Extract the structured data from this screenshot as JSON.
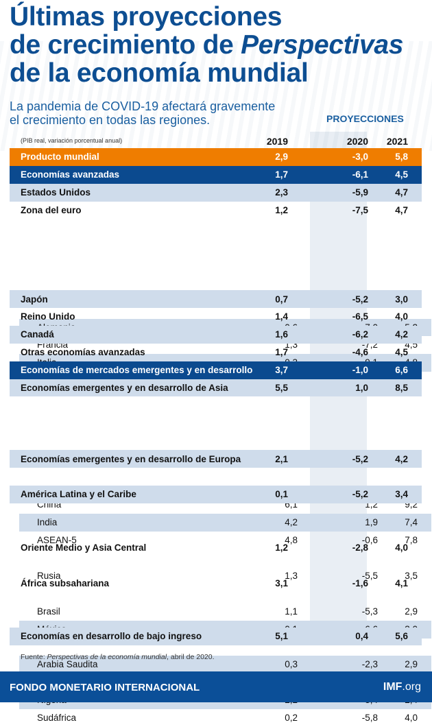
{
  "title": {
    "line1": "Últimas proyecciones",
    "line2a": "de crecimiento de ",
    "line2b": "Perspectivas",
    "line3": "de la economía mundial"
  },
  "subtitle": {
    "line1": "La pandemia de COVID-19 afectará gravemente",
    "line2": "el crecimiento en todas las regiones."
  },
  "projections_label": "PROYECCIONES",
  "unit_note": "(PIB real, variación porcentual anual)",
  "years": [
    "2019",
    "2020",
    "2021"
  ],
  "colors": {
    "title": "#0d4e92",
    "world_row": "#ef7d00",
    "group_row": "#0b4a8f",
    "alt_row": "#cfdceb",
    "footer": "#0b4f98"
  },
  "rows": [
    {
      "label": "Producto mundial",
      "values": [
        "2,9",
        "-3,0",
        "5,8"
      ],
      "style": "world"
    },
    {
      "label": "Economías avanzadas",
      "values": [
        "1,7",
        "-6,1",
        "4,5"
      ],
      "style": "group"
    },
    {
      "label": "Estados Unidos",
      "values": [
        "2,3",
        "-5,9",
        "4,7"
      ],
      "style": "bold"
    },
    {
      "label": "Zona del euro",
      "values": [
        "1,2",
        "-7,5",
        "4,7"
      ],
      "style": "bold"
    },
    {
      "label": "Alemania",
      "values": [
        "0,6",
        "-7,0",
        "5,2"
      ],
      "style": "sub"
    },
    {
      "label": "Francia",
      "values": [
        "1,3",
        "-7,2",
        "4,5"
      ],
      "style": "sub"
    },
    {
      "label": "Italia",
      "values": [
        "0,3",
        "-9,1",
        "4,8"
      ],
      "style": "sub"
    },
    {
      "label": "España",
      "values": [
        "2,0",
        "-8,0",
        "4,3"
      ],
      "style": "sub"
    },
    {
      "label": "Japón",
      "values": [
        "0,7",
        "-5,2",
        "3,0"
      ],
      "style": "bold"
    },
    {
      "label": "Reino Unido",
      "values": [
        "1,4",
        "-6,5",
        "4,0"
      ],
      "style": "bold"
    },
    {
      "label": "Canadá",
      "values": [
        "1,6",
        "-6,2",
        "4,2"
      ],
      "style": "bold"
    },
    {
      "label": "Otras economías avanzadas",
      "values": [
        "1,7",
        "-4,6",
        "4,5"
      ],
      "style": "bold"
    },
    {
      "label": "Economías de mercados emergentes y en desarrollo",
      "values": [
        "3,7",
        "-1,0",
        "6,6"
      ],
      "style": "group"
    },
    {
      "label": "Economías emergentes y en desarrollo de Asia",
      "values": [
        "5,5",
        "1,0",
        "8,5"
      ],
      "style": "bold"
    },
    {
      "label": "China",
      "values": [
        "6,1",
        "1,2",
        "9,2"
      ],
      "style": "sub"
    },
    {
      "label": "India",
      "values": [
        "4,2",
        "1,9",
        "7,4"
      ],
      "style": "sub"
    },
    {
      "label": "ASEAN-5",
      "values": [
        "4,8",
        "-0,6",
        "7,8"
      ],
      "style": "sub"
    },
    {
      "label": "Economías emergentes y en desarrollo de Europa",
      "values": [
        "2,1",
        "-5,2",
        "4,2"
      ],
      "style": "bold"
    },
    {
      "label": "Rusia",
      "values": [
        "1,3",
        "-5,5",
        "3,5"
      ],
      "style": "sub"
    },
    {
      "label": "América Latina y el Caribe",
      "values": [
        "0,1",
        "-5,2",
        "3,4"
      ],
      "style": "bold"
    },
    {
      "label": "Brasil",
      "values": [
        "1,1",
        "-5,3",
        "2,9"
      ],
      "style": "sub"
    },
    {
      "label": "México",
      "values": [
        "-0,1",
        "-6,6",
        "3,0"
      ],
      "style": "sub"
    },
    {
      "label": "Oriente Medio y Asia Central",
      "values": [
        "1,2",
        "-2,8",
        "4,0"
      ],
      "style": "bold"
    },
    {
      "label": "Arabia Saudita",
      "values": [
        "0,3",
        "-2,3",
        "2,9"
      ],
      "style": "sub"
    },
    {
      "label": "África subsahariana",
      "values": [
        "3,1",
        "-1,6",
        "4,1"
      ],
      "style": "bold"
    },
    {
      "label": "Nigeria",
      "values": [
        "2,2",
        "-3,4",
        "2,4"
      ],
      "style": "sub"
    },
    {
      "label": "Sudáfrica",
      "values": [
        "0,2",
        "-5,8",
        "4,0"
      ],
      "style": "sub"
    },
    {
      "label": "Economías en desarrollo de bajo ingreso",
      "values": [
        "5,1",
        "0,4",
        "5,6"
      ],
      "style": "bold"
    }
  ],
  "source": {
    "prefix": "Fuente: ",
    "title": "Perspectivas de la economía mundial",
    "suffix": ", abril de 2020."
  },
  "footer": {
    "org": "FONDO MONETARIO INTERNACIONAL",
    "site_bold": "IMF",
    "site_rest": ".org"
  }
}
